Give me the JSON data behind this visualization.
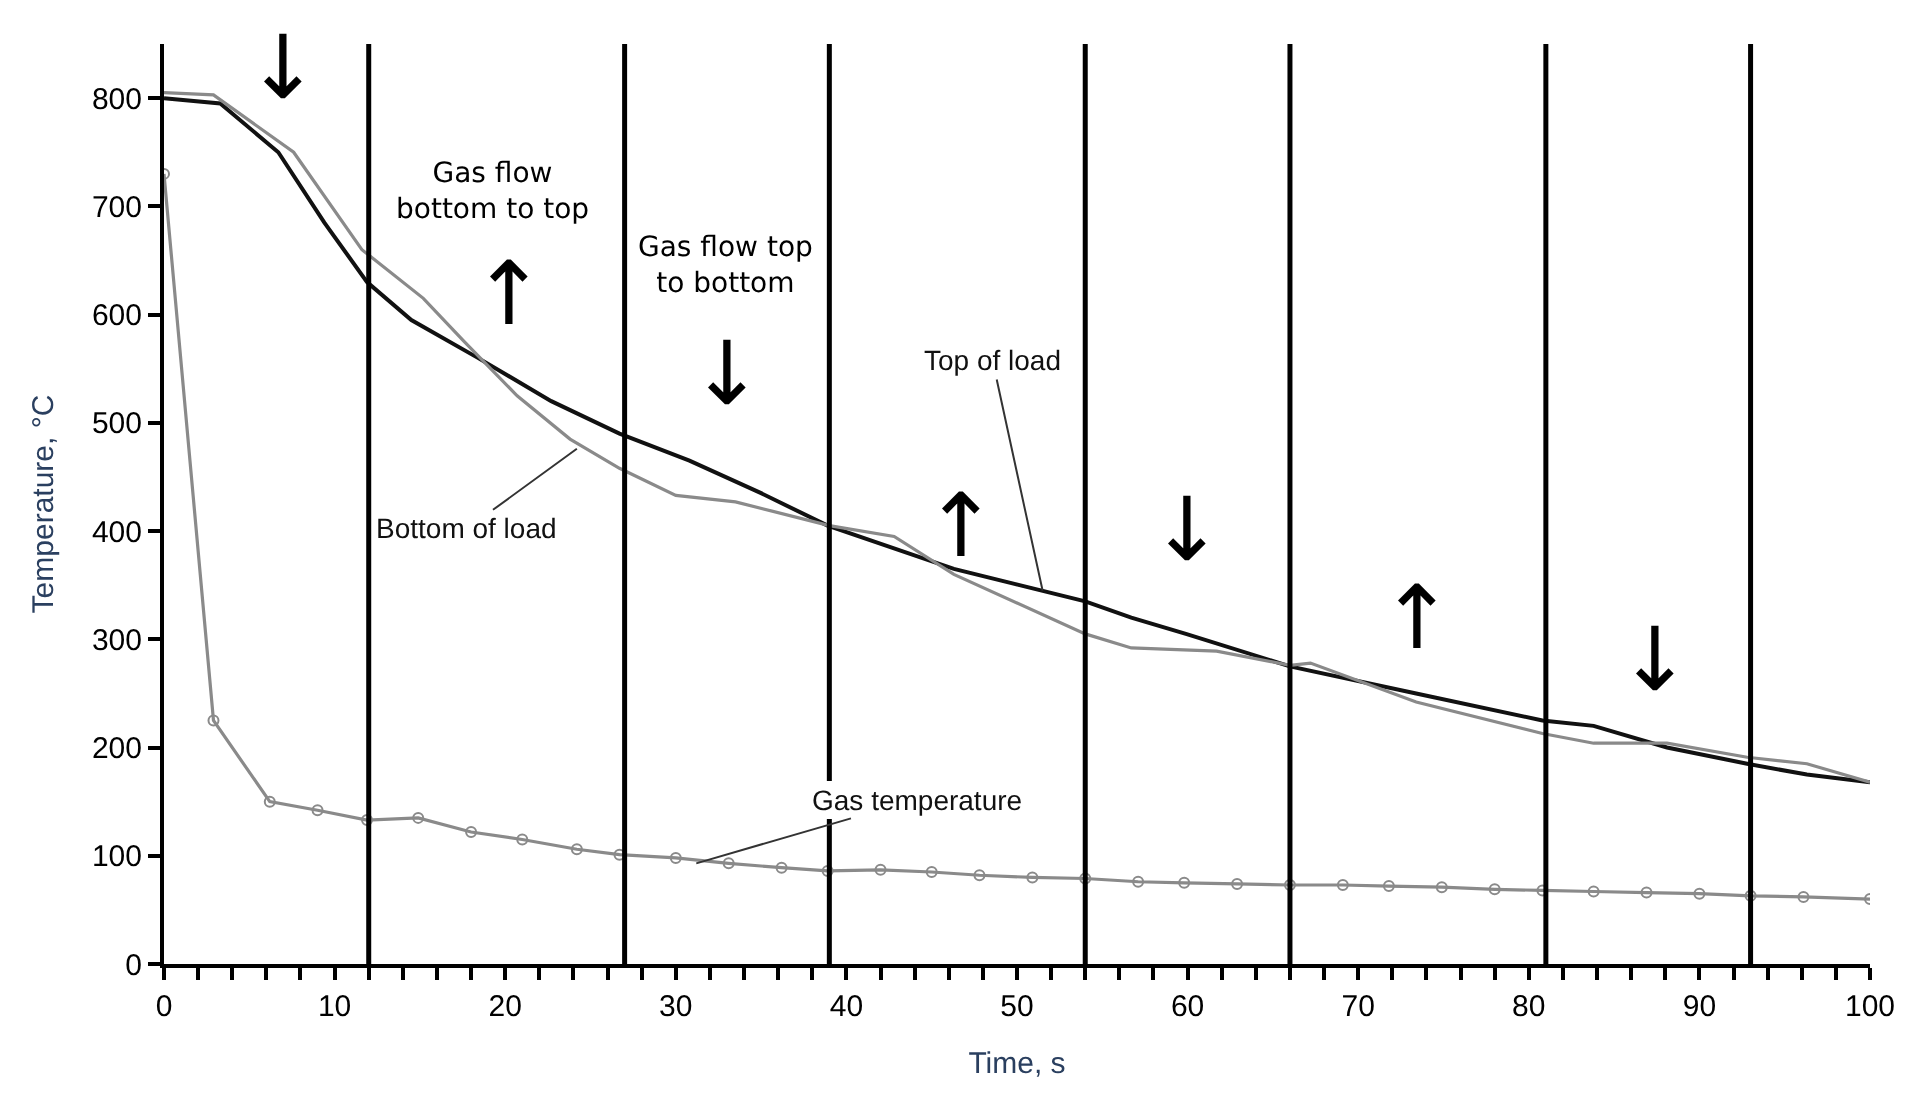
{
  "chart_data": {
    "type": "line",
    "xlabel": "Time, s",
    "ylabel": "Temperature, °C",
    "xlim": [
      0,
      100
    ],
    "ylim": [
      0,
      850
    ],
    "xticks": [
      0,
      {
        "value": 2,
        "label": null
      },
      {
        "value": 4,
        "label": null
      },
      {
        "value": 6,
        "label": null
      },
      {
        "value": 8,
        "label": null
      },
      10,
      {
        "value": 12,
        "label": null
      },
      {
        "value": 14,
        "label": null
      },
      {
        "value": 16,
        "label": null
      },
      {
        "value": 18,
        "label": null
      },
      20,
      {
        "value": 22,
        "label": null
      },
      {
        "value": 24,
        "label": null
      },
      {
        "value": 26,
        "label": null
      },
      {
        "value": 28,
        "label": null
      },
      30,
      {
        "value": 32,
        "label": null
      },
      {
        "value": 34,
        "label": null
      },
      {
        "value": 36,
        "label": null
      },
      {
        "value": 38,
        "label": null
      },
      40,
      {
        "value": 42,
        "label": null
      },
      {
        "value": 44,
        "label": null
      },
      {
        "value": 46,
        "label": null
      },
      {
        "value": 48,
        "label": null
      },
      50,
      {
        "value": 52,
        "label": null
      },
      {
        "value": 54,
        "label": null
      },
      {
        "value": 56,
        "label": null
      },
      {
        "value": 58,
        "label": null
      },
      60,
      {
        "value": 62,
        "label": null
      },
      {
        "value": 64,
        "label": null
      },
      {
        "value": 66,
        "label": null
      },
      {
        "value": 68,
        "label": null
      },
      70,
      {
        "value": 72,
        "label": null
      },
      {
        "value": 74,
        "label": null
      },
      {
        "value": 76,
        "label": null
      },
      {
        "value": 78,
        "label": null
      },
      80,
      {
        "value": 82,
        "label": null
      },
      {
        "value": 84,
        "label": null
      },
      {
        "value": 86,
        "label": null
      },
      {
        "value": 88,
        "label": null
      },
      90,
      {
        "value": 92,
        "label": null
      },
      {
        "value": 94,
        "label": null
      },
      {
        "value": 96,
        "label": null
      },
      {
        "value": 98,
        "label": null
      },
      100
    ],
    "yticks": [
      0,
      100,
      200,
      300,
      400,
      500,
      600,
      700,
      800
    ],
    "line_style": "solid",
    "series": [
      {
        "color": "#111111",
        "marker": "none",
        "x": [
          0,
          3.3,
          6.7,
          9.4,
          11.9,
          14.5,
          18.4,
          22.7,
          26.7,
          30.8,
          35,
          38.9,
          46.3,
          54,
          56.7,
          59.9,
          66,
          73.4,
          80.8,
          83.8,
          88.1,
          92.8,
          96.3,
          100
        ],
        "values": [
          800,
          795,
          750,
          685,
          630,
          595,
          560,
          520,
          490,
          465,
          435,
          405,
          365,
          335,
          320,
          305,
          275,
          250,
          225,
          220,
          200,
          185,
          175,
          168
        ]
      },
      {
        "color": "#8a8a8a",
        "marker": "none",
        "x": [
          0,
          2.9,
          7.6,
          11.6,
          15.2,
          17.6,
          20.7,
          23.8,
          26.7,
          30,
          33.5,
          39,
          42.8,
          46.3,
          54,
          56.7,
          61.7,
          66,
          67.2,
          73.4,
          80.8,
          83.8,
          88.1,
          92.8,
          96.3,
          100
        ],
        "values": [
          805,
          803,
          750,
          660,
          615,
          575,
          525,
          485,
          458,
          433,
          427,
          405,
          395,
          360,
          305,
          292,
          289,
          276,
          278,
          242,
          213,
          204,
          204,
          191,
          185,
          168
        ]
      },
      {
        "color": "#8a8a8a",
        "marker": "circle",
        "x": [
          0,
          2.9,
          6.2,
          9,
          11.9,
          14.9,
          18,
          21,
          24.2,
          26.7,
          30,
          33.1,
          36.2,
          38.9,
          42,
          45,
          47.8,
          50.9,
          54,
          57.1,
          59.8,
          62.9,
          66,
          69.1,
          71.8,
          74.9,
          78,
          80.8,
          83.8,
          86.9,
          90,
          93,
          96.1,
          100
        ],
        "values": [
          730,
          225,
          150,
          142,
          133,
          135,
          122,
          115,
          106,
          101,
          98,
          93,
          89,
          86,
          87,
          85,
          82,
          80,
          79,
          76,
          75,
          74,
          73,
          73,
          72,
          71,
          69,
          68,
          67,
          66,
          65,
          63,
          62,
          60
        ]
      }
    ],
    "ref_lines": [
      {
        "axis": "x",
        "value": 12,
        "color": "#000000"
      },
      {
        "axis": "x",
        "value": 27,
        "color": "#000000"
      },
      {
        "axis": "x",
        "value": 39,
        "color": "#000000"
      },
      {
        "axis": "x",
        "value": 54,
        "color": "#000000"
      },
      {
        "axis": "x",
        "value": 66,
        "color": "#000000"
      },
      {
        "axis": "x",
        "value": 81,
        "color": "#000000"
      },
      {
        "axis": "x",
        "value": 93,
        "color": "#000000"
      }
    ],
    "annotations": [
      "Gas flow\nbottom to top",
      "Gas flow top\nto bottom",
      {
        "text": "Top of load",
        "x": 51.5,
        "y": 345
      },
      {
        "text": "Bottom of load",
        "x": 24.2,
        "y": 476
      },
      {
        "text": "Gas temperature",
        "x": 31.2,
        "y": 93
      },
      "↓",
      "↑",
      "↓",
      "↑",
      "↓",
      "↑",
      "↓"
    ]
  }
}
